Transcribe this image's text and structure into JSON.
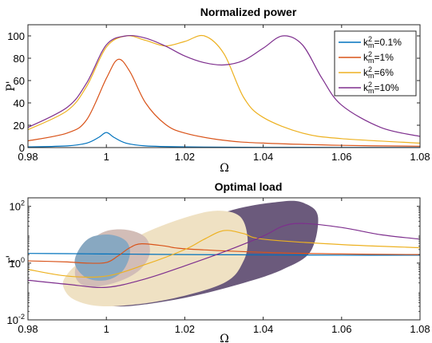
{
  "chart_data": [
    {
      "type": "line",
      "title": "Normalized power",
      "xlabel": "Ω",
      "ylabel": "P'",
      "xlim": [
        0.98,
        1.08
      ],
      "ylim": [
        0,
        110
      ],
      "xticks": [
        "0.98",
        "1",
        "1.02",
        "1.04",
        "1.06",
        "1.08"
      ],
      "xtick_values": [
        0.98,
        1.0,
        1.02,
        1.04,
        1.06,
        1.08
      ],
      "yticks": [
        "0",
        "20",
        "40",
        "60",
        "80",
        "100"
      ],
      "ytick_values": [
        0,
        20,
        40,
        60,
        80,
        100
      ],
      "legend_position": "top-right",
      "series": [
        {
          "name": "k_m^2=0.1%",
          "legend_base": "k",
          "legend_sup": "2",
          "legend_sub": "m",
          "legend_value": "=0.1%",
          "color": "#0072BD",
          "x": [
            0.98,
            0.99,
            0.995,
            0.998,
            1.0,
            1.002,
            1.005,
            1.01,
            1.02,
            1.04,
            1.08
          ],
          "y": [
            0.6,
            1.5,
            4,
            9,
            13.5,
            9,
            4,
            1.5,
            0.6,
            0.2,
            0.1
          ]
        },
        {
          "name": "k_m^2=1%",
          "legend_base": "k",
          "legend_sup": "2",
          "legend_sub": "m",
          "legend_value": "=1%",
          "color": "#D95319",
          "x": [
            0.98,
            0.99,
            0.995,
            1.0,
            1.003,
            1.006,
            1.01,
            1.015,
            1.02,
            1.03,
            1.04,
            1.06,
            1.08
          ],
          "y": [
            6,
            13,
            25,
            62,
            79,
            68,
            40,
            21,
            13,
            6.5,
            4,
            2,
            1.2
          ]
        },
        {
          "name": "k_m^2=6%",
          "legend_base": "k",
          "legend_sup": "2",
          "legend_sub": "m",
          "legend_value": "=6%",
          "color": "#EDB120",
          "x": [
            0.98,
            0.99,
            0.995,
            1.0,
            1.005,
            1.01,
            1.015,
            1.02,
            1.025,
            1.03,
            1.035,
            1.04,
            1.05,
            1.06,
            1.08
          ],
          "y": [
            16,
            33,
            55,
            90,
            100,
            96,
            91,
            95,
            100,
            84,
            45,
            27,
            13,
            8,
            4
          ]
        },
        {
          "name": "k_m^2=10%",
          "legend_base": "k",
          "legend_sup": "2",
          "legend_sub": "m",
          "legend_value": "=10%",
          "color": "#7E2F8E",
          "x": [
            0.98,
            0.99,
            0.995,
            1.0,
            1.005,
            1.01,
            1.015,
            1.02,
            1.025,
            1.03,
            1.035,
            1.04,
            1.045,
            1.05,
            1.055,
            1.06,
            1.07,
            1.08
          ],
          "y": [
            18,
            36,
            58,
            92,
            100,
            98,
            91,
            82,
            76,
            74,
            78,
            89,
            100,
            92,
            62,
            38,
            18,
            10
          ]
        }
      ]
    },
    {
      "type": "line",
      "title": "Optimal load",
      "xlabel": "Ω",
      "ylabel": "r'",
      "yscale": "log",
      "xlim": [
        0.98,
        1.08
      ],
      "ylim": [
        0.01,
        200
      ],
      "xticks": [
        "0.98",
        "1",
        "1.02",
        "1.04",
        "1.06",
        "1.08"
      ],
      "xtick_values": [
        0.98,
        1.0,
        1.02,
        1.04,
        1.06,
        1.08
      ],
      "ytick_values": [
        0.01,
        1,
        100
      ],
      "yticks": [
        {
          "base": "10",
          "exp": "-2"
        },
        {
          "base": "10",
          "exp": "0"
        },
        {
          "base": "10",
          "exp": "2"
        }
      ],
      "regions": [
        {
          "color": "#6B5A7C",
          "x": [
            0.996,
            0.998,
            1.005,
            1.02,
            1.035,
            1.045,
            1.052,
            1.054,
            1.051,
            1.045,
            1.03,
            1.015,
            1.003,
            0.997
          ],
          "y": [
            0.07,
            0.04,
            0.03,
            0.06,
            0.2,
            0.6,
            2.5,
            40,
            120,
            150,
            60,
            5,
            0.7,
            0.15
          ]
        },
        {
          "color": "#EFE1C3",
          "x": [
            0.989,
            0.992,
            1.0,
            1.015,
            1.03,
            1.035,
            1.036,
            1.034,
            1.028,
            1.02,
            1.01,
            1.002,
            0.994,
            0.99
          ],
          "y": [
            0.15,
            0.05,
            0.03,
            0.05,
            0.2,
            1.2,
            8,
            45,
            70,
            40,
            12,
            3,
            1.2,
            0.4
          ]
        },
        {
          "color": "#D2BDB7",
          "x": [
            0.992,
            0.995,
            1.002,
            1.008,
            1.011,
            1.01,
            1.005,
            0.999,
            0.994
          ],
          "y": [
            0.4,
            0.15,
            0.2,
            0.5,
            2,
            8,
            15,
            12,
            3
          ]
        },
        {
          "color": "#88A8C1",
          "x": [
            0.992,
            0.995,
            1.0,
            1.004,
            1.006,
            1.005,
            1.001,
            0.996,
            0.993
          ],
          "y": [
            0.9,
            0.3,
            0.25,
            0.5,
            2,
            6,
            10,
            8,
            3
          ]
        }
      ],
      "series": [
        {
          "name": "k_m^2=0.1%",
          "color": "#0072BD",
          "x": [
            0.98,
            0.99,
            1.0,
            1.01,
            1.02,
            1.04,
            1.06,
            1.08
          ],
          "y": [
            2.2,
            2.15,
            2.1,
            2.05,
            2.0,
            1.95,
            1.9,
            1.9
          ]
        },
        {
          "name": "k_m^2=1%",
          "color": "#D95319",
          "x": [
            0.98,
            0.99,
            0.995,
            1.0,
            1.003,
            1.006,
            1.009,
            1.015,
            1.02,
            1.04,
            1.06,
            1.08
          ],
          "y": [
            1.2,
            1.1,
            1.0,
            1.05,
            1.8,
            3.5,
            4.8,
            4.0,
            3.2,
            2.4,
            2.1,
            2.0
          ]
        },
        {
          "name": "k_m^2=6%",
          "color": "#EDB120",
          "x": [
            0.98,
            0.99,
            1.0,
            1.01,
            1.02,
            1.025,
            1.03,
            1.035,
            1.04,
            1.06,
            1.08
          ],
          "y": [
            0.6,
            0.35,
            0.35,
            0.9,
            3,
            7,
            14,
            11,
            7,
            4.5,
            3.5
          ]
        },
        {
          "name": "k_m^2=10%",
          "color": "#7E2F8E",
          "x": [
            0.98,
            0.99,
            1.0,
            1.01,
            1.02,
            1.03,
            1.04,
            1.045,
            1.05,
            1.06,
            1.07,
            1.08
          ],
          "y": [
            0.25,
            0.18,
            0.14,
            0.28,
            0.8,
            2.5,
            9,
            20,
            25,
            18,
            10,
            7
          ]
        }
      ]
    }
  ]
}
